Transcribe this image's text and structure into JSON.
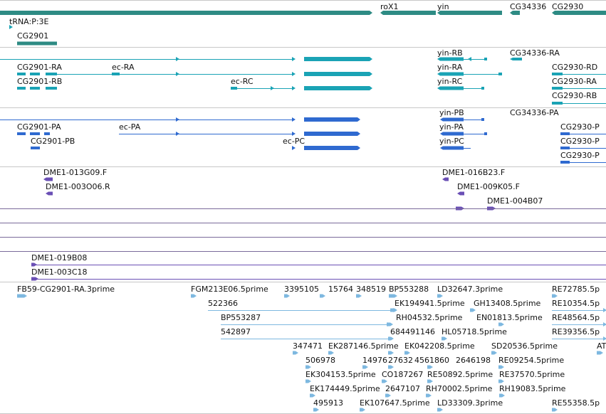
{
  "colors": {
    "gene": "#2e8b84",
    "transcript": "#1aa3b5",
    "protein": "#2f6ad0",
    "oligo": "#6a4fb5",
    "est": "#7db8e0",
    "separator_gray": "#c8c8c8",
    "separator_purple": "#7a6a9a"
  },
  "genes": {
    "labels": [
      "roX1",
      "yin",
      "CG34336",
      "CG2930",
      "tRNA:P:3E",
      "CG2901"
    ]
  },
  "transcripts": {
    "labels": [
      "yin-RB",
      "CG34336-RA",
      "CG2901-RA",
      "ec-RA",
      "yin-RA",
      "CG2930-RD",
      "CG2901-RB",
      "ec-RC",
      "yin-RC",
      "CG2930-RA",
      "CG2930-RB"
    ]
  },
  "proteins": {
    "labels": [
      "yin-PB",
      "CG34336-PA",
      "CG2901-PA",
      "ec-PA",
      "yin-PA",
      "CG2930-P",
      "CG2901-PB",
      "ec-PC",
      "yin-PC",
      "CG2930-P",
      "CG2930-P"
    ]
  },
  "oligos": {
    "labels": [
      "DME1-013G09.F",
      "DME1-016B23.F",
      "DME1-003O06.R",
      "DME1-009K05.F",
      "DME1-004B07",
      "DME1-019B08",
      "DME1-003C18"
    ]
  },
  "ests": {
    "labels": [
      "FB59-CG2901-RA.3prime",
      "FGM213E06.5prime",
      "3395105",
      "15764",
      "348519",
      "BP553288",
      "LD32647.3prime",
      "RE72785.5p",
      "522366",
      "EK194941.5prime",
      "GH13408.5prime",
      "RE10354.5p",
      "BP553287",
      "RH04532.5prime",
      "EN01813.5prime",
      "RE48564.5p",
      "542897",
      "684491146",
      "HL05718.5prime",
      "RE39356.5p",
      "347471",
      "EK287146.5prime",
      "EK042208.5prime",
      "SD20536.5prime",
      "AT",
      "506978",
      "14976",
      "27632",
      "4561860",
      "2646198",
      "RE09254.5prime",
      "EK304153.5prime",
      "CO187267",
      "RE50892.5prime",
      "RE37570.5prime",
      "EK174449.5prime",
      "2647107",
      "RH70002.5prime",
      "RH19083.5prime",
      "495913",
      "EK107647.5prime",
      "LD33309.3prime",
      "RE55358.5p"
    ]
  }
}
